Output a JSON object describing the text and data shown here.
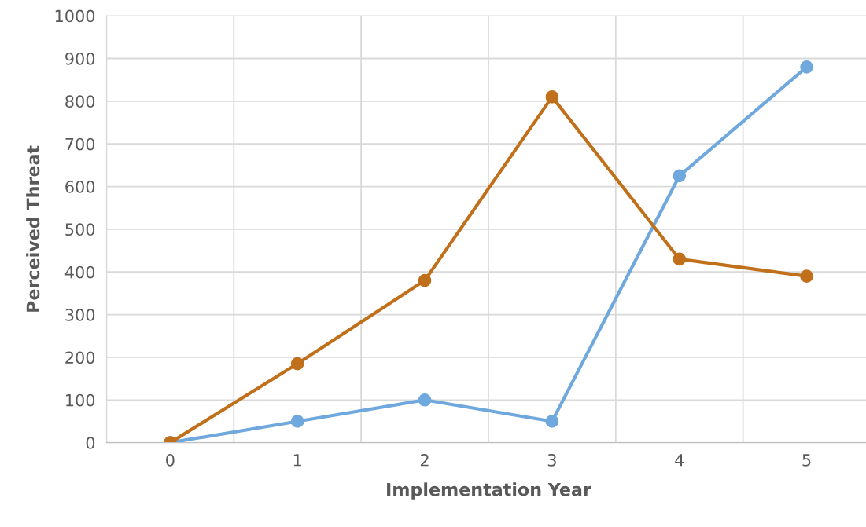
{
  "chart_data": {
    "type": "line",
    "xlabel": "Implementation Year",
    "ylabel": "Perceived Threat",
    "categories": [
      "0",
      "1",
      "2",
      "3",
      "4",
      "5"
    ],
    "series": [
      {
        "color": "#6fa8dc",
        "values": [
          0,
          50,
          100,
          50,
          625,
          880
        ]
      },
      {
        "color": "#c0701a",
        "values": [
          0,
          185,
          380,
          810,
          430,
          390
        ]
      }
    ],
    "ylim": [
      0,
      1000
    ],
    "yticks": [
      0,
      100,
      200,
      300,
      400,
      500,
      600,
      700,
      800,
      900,
      1000
    ],
    "grid": true,
    "marker": "circle",
    "line_style": "solid"
  }
}
